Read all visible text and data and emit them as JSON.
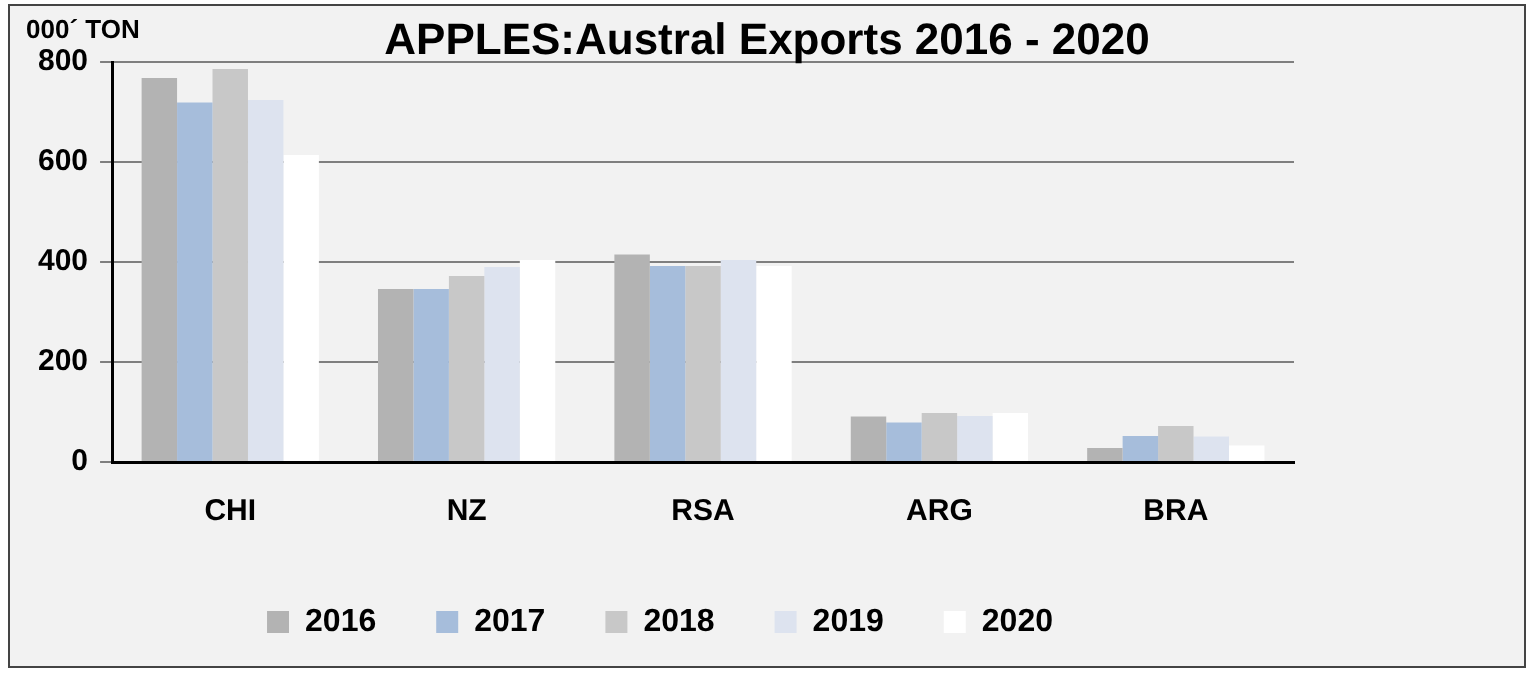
{
  "chart_data": {
    "type": "bar",
    "title": "APPLES:Austral Exports 2016 - 2020",
    "ylabel": "000´ TON",
    "categories": [
      "CHI",
      "NZ",
      "RSA",
      "ARG",
      "BRA"
    ],
    "series": [
      {
        "name": "2016",
        "color": "#b3b3b3",
        "values": [
          768,
          346,
          415,
          91,
          28
        ]
      },
      {
        "name": "2017",
        "color": "#a6bddb",
        "values": [
          719,
          346,
          392,
          79,
          52
        ]
      },
      {
        "name": "2018",
        "color": "#c8c8c8",
        "values": [
          786,
          372,
          392,
          98,
          72
        ]
      },
      {
        "name": "2019",
        "color": "#dde3ef",
        "values": [
          724,
          390,
          404,
          92,
          51
        ]
      },
      {
        "name": "2020",
        "color": "#ffffff",
        "values": [
          614,
          404,
          392,
          98,
          33
        ]
      }
    ],
    "ylim": [
      0,
      800
    ],
    "yticks": [
      0,
      200,
      400,
      600,
      800
    ],
    "grid": "y",
    "legend": "bottom"
  }
}
